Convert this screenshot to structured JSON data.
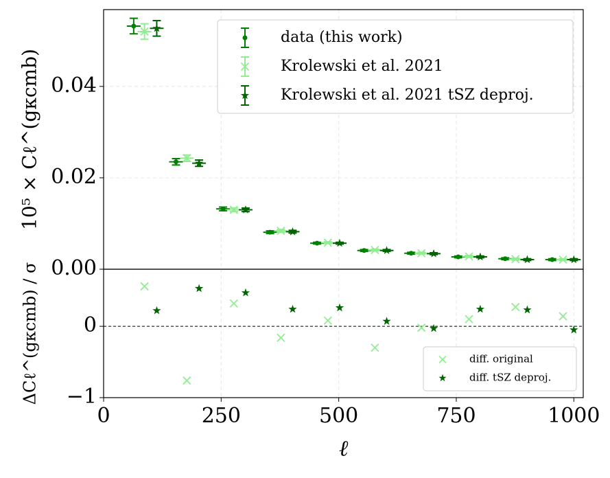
{
  "chart_data": [
    {
      "type": "errorbar",
      "ylabel": "10⁵ × Cℓ^(gκcmb)",
      "xlim": [
        0,
        1020
      ],
      "ylim": [
        0,
        0.0568
      ],
      "yticks": [
        {
          "value": 0,
          "label": "0.00"
        },
        0.02,
        0.04
      ],
      "grid": true,
      "legend": "upper right",
      "series": [
        {
          "name": "data (this work)",
          "color": "#008000",
          "marker": "circle",
          "x": [
            64,
            154,
            254,
            354,
            454,
            554,
            654,
            754,
            854,
            954
          ],
          "values": [
            0.0532,
            0.0235,
            0.0132,
            0.0081,
            0.0057,
            0.0041,
            0.0035,
            0.0027,
            0.0023,
            0.0021
          ],
          "errors": [
            0.0017,
            0.0007,
            0.0004,
            0.0003,
            0.0002,
            0.0002,
            0.0002,
            0.0002,
            0.0002,
            0.0002
          ]
        },
        {
          "name": "Krolewski et al. 2021",
          "color": "#90ee90",
          "marker": "x",
          "x": [
            87,
            177,
            277,
            377,
            477,
            577,
            676,
            777,
            876,
            977
          ],
          "values": [
            0.052,
            0.0243,
            0.013,
            0.0084,
            0.0058,
            0.0042,
            0.0035,
            0.0028,
            0.0022,
            0.0021
          ],
          "errors": [
            0.0017,
            0.0007,
            0.0004,
            0.0003,
            0.0002,
            0.0002,
            0.0002,
            0.0002,
            0.0002,
            0.0002
          ]
        },
        {
          "name": "Krolewski et al. 2021 tSZ deproj.",
          "color": "#006400",
          "marker": "star",
          "x": [
            113,
            203,
            302,
            402,
            502,
            602,
            702,
            801,
            901,
            1000
          ],
          "values": [
            0.0527,
            0.0232,
            0.013,
            0.0082,
            0.0057,
            0.0041,
            0.0034,
            0.0027,
            0.0021,
            0.0021
          ],
          "errors": [
            0.0017,
            0.0007,
            0.0004,
            0.0003,
            0.0002,
            0.0002,
            0.0002,
            0.0002,
            0.0002,
            0.0002
          ]
        }
      ]
    },
    {
      "type": "scatter",
      "ylabel": "ΔCℓ^(gκcmb) / σ",
      "xlabel": "ℓ",
      "xlim": [
        0,
        1020
      ],
      "ylim": [
        -1,
        0.8
      ],
      "xticks": [
        0,
        250,
        500,
        750,
        1000
      ],
      "yticks": [
        {
          "value": -1,
          "label": "−1"
        },
        0
      ],
      "grid": true,
      "zero_line": true,
      "legend": "lower right",
      "series": [
        {
          "name": "diff. original",
          "color": "#90ee90",
          "marker": "x",
          "x": [
            87,
            177,
            277,
            377,
            477,
            577,
            676,
            777,
            876,
            977
          ],
          "values": [
            0.56,
            -0.76,
            0.32,
            -0.16,
            0.08,
            -0.3,
            -0.02,
            0.1,
            0.27,
            0.14
          ]
        },
        {
          "name": "diff. tSZ deproj.",
          "color": "#006400",
          "marker": "star",
          "x": [
            113,
            203,
            302,
            402,
            502,
            602,
            702,
            801,
            901,
            1000
          ],
          "values": [
            0.22,
            0.53,
            0.47,
            0.24,
            0.26,
            0.07,
            -0.03,
            0.24,
            0.23,
            -0.05
          ]
        }
      ]
    }
  ]
}
